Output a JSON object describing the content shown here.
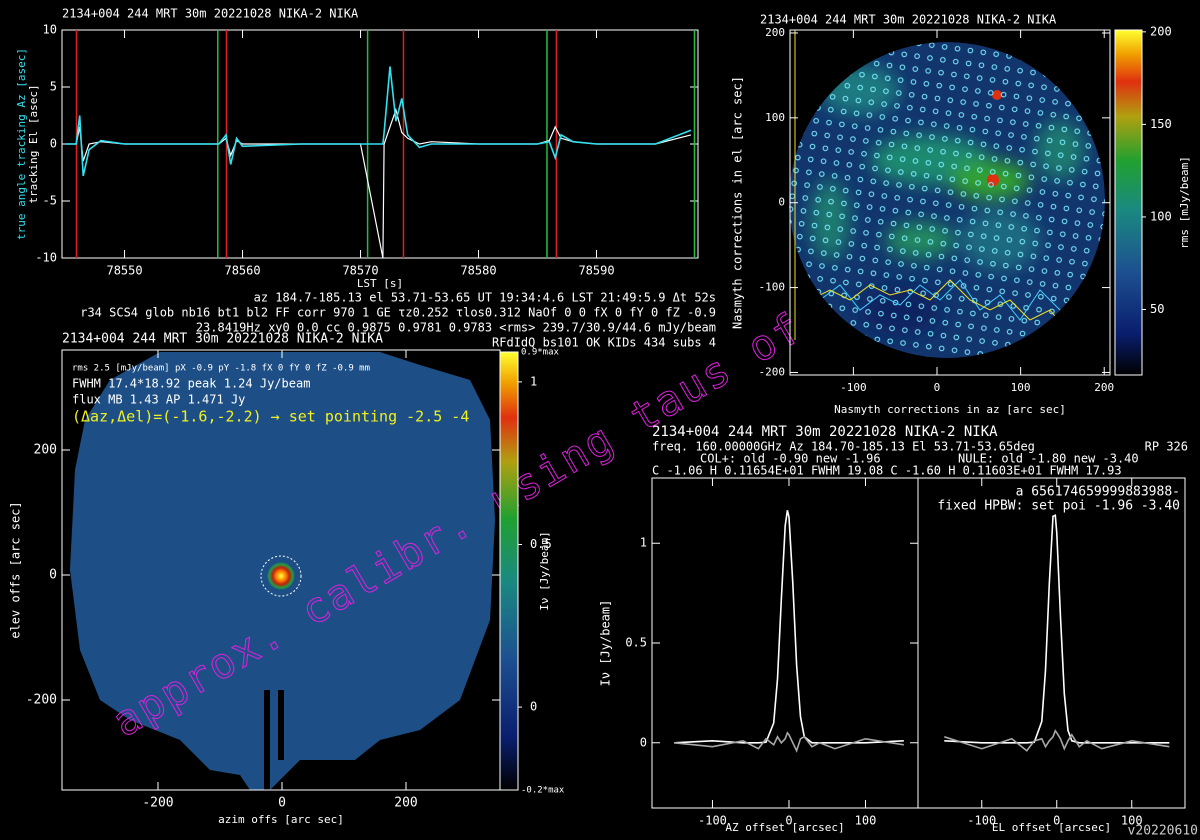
{
  "chart_data": [
    {
      "type": "line",
      "title": "2134+004 244 MRT 30m  20221028 NIKA-2 NIKA",
      "xlabel": "LST [s]",
      "ylabel": "true angle tracking Az [asec]",
      "ylabel2": "tracking El [asec]",
      "xlim": [
        78544.7,
        78598.6
      ],
      "ylim": [
        -10,
        10
      ],
      "xticks": [
        78550,
        78560,
        78570,
        78580,
        78590
      ],
      "yticks": [
        -10,
        -5,
        0,
        5,
        10
      ],
      "x": [
        78545,
        78545.9,
        78546.2,
        78546.5,
        78547,
        78548,
        78550,
        78555,
        78558,
        78558.6,
        78559,
        78559.5,
        78560,
        78565,
        78570,
        78571.9,
        78572,
        78572.5,
        78573,
        78573.5,
        78574,
        78575,
        78576,
        78580,
        78585,
        78586,
        78586.5,
        78587,
        78588,
        78590,
        78595,
        78598
      ],
      "series": [
        {
          "color": "#ffffff",
          "values": [
            0,
            0,
            1.5,
            -1.5,
            0,
            0.2,
            0,
            0,
            0,
            0.5,
            -1,
            0.3,
            0,
            0,
            0,
            -10,
            0,
            1.5,
            3,
            1,
            0.5,
            0,
            0.2,
            0,
            0,
            0.3,
            1.5,
            0.5,
            0.2,
            0,
            0,
            0.8
          ]
        },
        {
          "color": "#33e0f0",
          "values": [
            0,
            0,
            2.5,
            -2.8,
            -0.5,
            0.3,
            0,
            0,
            0,
            0.8,
            -1.8,
            0.5,
            -0.2,
            0,
            0,
            0,
            1,
            6.8,
            2,
            4,
            0.8,
            -0.3,
            0,
            0,
            0,
            0.2,
            -1.2,
            0.8,
            0.2,
            0,
            0,
            1.2
          ]
        }
      ],
      "vlines": [
        {
          "color": "#e02020",
          "values": [
            78545.93,
            78558.64,
            78573.64,
            78586.6
          ]
        },
        {
          "color": "#20c040",
          "values": [
            78557.9,
            78570.6,
            78585.8,
            78598.3
          ]
        }
      ],
      "info": [
        "az 184.7-185.13 el 53.71-53.65 UT 19:34:4.6 LST 21:49:5.9 Δt 52s",
        "r34 SCS4 glob nb16 bt1 bl2 FF corr 970 1 GE τz0.252 τlos0.312 NaOf 0 0 fX 0 fY 0 fZ -0.9",
        "23.8419Hz xy0 0.0 cc 0.9875 0.9781 0.9783 <rms> 239.7/30.9/44.6 mJy/beam",
        "RFdIdQ bs101 OK KIDs 434 subs 4"
      ]
    },
    {
      "type": "heatmap",
      "title": "2134+004 244 MRT 30m  20221028 NIKA-2 NIKA",
      "xlabel": "azim offs [arc sec]",
      "ylabel": "elev offs [arc sec]",
      "xlim": [
        -354.8,
        351.6
      ],
      "ylim": [
        -344,
        360
      ],
      "xticks": [
        -200,
        0,
        200
      ],
      "yticks": [
        -200,
        0,
        200
      ],
      "annotations": [
        "rms 2.5 [mJy/beam] pX -0.9 pY -1.8 fX 0 fY 0 fZ -0.9 mm",
        "FWHM 17.4*18.92 peak 1.24 Jy/beam",
        "flux MB 1.43 AP 1.471 Jy",
        "(Δaz,Δel)=(-1.6,-2.2) → set pointing -2.5 -4"
      ],
      "colorbar": {
        "label": "Iν [Jy/beam]",
        "lim": [
          -0.255,
          1.092
        ],
        "ticks": [
          0,
          0.5,
          1
        ],
        "top_label": "0.9*max",
        "bottom_label": "-0.2*max"
      }
    },
    {
      "type": "heatmap",
      "title": "2134+004 244 MRT 30m  20221028 NIKA-2 NIKA",
      "xlabel": "Nasmyth corrections in az [arc sec]",
      "ylabel": "Nasmyth corrections in el [arc sec]",
      "xlim": [
        -175.8,
        206.9
      ],
      "ylim": [
        -203,
        203.5
      ],
      "xticks": [
        -100,
        0,
        100,
        200
      ],
      "yticks": [
        -200,
        -100,
        0,
        100,
        200
      ],
      "colorbar": {
        "label": "rms [mJy/beam]",
        "lim": [
          14.6,
          201
        ],
        "ticks": [
          50,
          100,
          150,
          200
        ]
      }
    },
    {
      "type": "line",
      "header": [
        "2134+004 244 MRT 30m  20221028 NIKA-2 NIKA",
        "freq. 160.00000GHz  Az 184.70-185.13 El 53.71-53.65deg",
        "RP  326",
        "COL+: old   -0.90 new   -1.96",
        "NULE: old   -1.80 new   -3.40",
        "C  -1.06     H  0.11654E+01 FWHM  19.08 C  -1.60     H  0.11603E+01 FWHM  17.93"
      ],
      "xlabel": "AZ offset [arcsec]",
      "ylabel": "Iν [Jy/beam]",
      "xlim": [
        -179,
        168.6
      ],
      "ylim": [
        -0.327,
        1.327
      ],
      "xticks": [
        -100,
        0,
        100
      ],
      "yticks": [
        0,
        0.5,
        1
      ],
      "x": [
        -150,
        -100,
        -60,
        -40,
        -30,
        -20,
        -15,
        -10,
        -5,
        -2,
        0,
        5,
        10,
        15,
        20,
        30,
        40,
        60,
        100,
        150
      ],
      "series": [
        {
          "color": "#ffffff",
          "values": [
            0,
            0.01,
            0,
            0,
            0.003,
            0.099,
            0.32,
            0.715,
            1.088,
            1.165,
            1.13,
            0.8,
            0.39,
            0.13,
            0.03,
            0,
            0,
            0,
            0,
            0.01
          ]
        },
        {
          "color": "#a8a8a8",
          "values": [
            0,
            -0.02,
            0.01,
            -0.03,
            0.02,
            -0.01,
            0.03,
            0,
            0.02,
            0.05,
            0.04,
            0,
            -0.04,
            0.02,
            0.03,
            -0.02,
            0,
            -0.03,
            0.02,
            -0.01
          ]
        }
      ]
    },
    {
      "type": "line",
      "annotations": [
        "a 656174659999883988-",
        "fixed HPBW: set poi  -1.96  -3.40"
      ],
      "xlabel": "EL offset [arcsec]",
      "xlim": [
        -185,
        171
      ],
      "ylim": [
        -0.327,
        1.327
      ],
      "xticks": [
        -100,
        0,
        100
      ],
      "x": [
        -150,
        -100,
        -60,
        -40,
        -30,
        -20,
        -15,
        -10,
        -5,
        -2,
        0,
        5,
        10,
        15,
        20,
        30,
        40,
        60,
        100,
        150
      ],
      "series": [
        {
          "color": "#ffffff",
          "values": [
            0.01,
            0,
            0,
            0,
            0.003,
            0.107,
            0.363,
            0.796,
            1.135,
            1.14,
            1.05,
            0.63,
            0.246,
            0.062,
            0.01,
            0,
            0,
            0,
            0,
            0
          ]
        },
        {
          "color": "#a8a8a8",
          "values": [
            0.03,
            -0.03,
            0.02,
            -0.04,
            0.01,
            0.02,
            -0.02,
            0.01,
            0.03,
            0.06,
            0.05,
            0.02,
            -0.03,
            0.01,
            0.04,
            -0.02,
            0.01,
            -0.03,
            0.01,
            -0.02
          ]
        }
      ]
    }
  ],
  "watermark": "approx. calibr. using taus of",
  "version": "v20220610"
}
